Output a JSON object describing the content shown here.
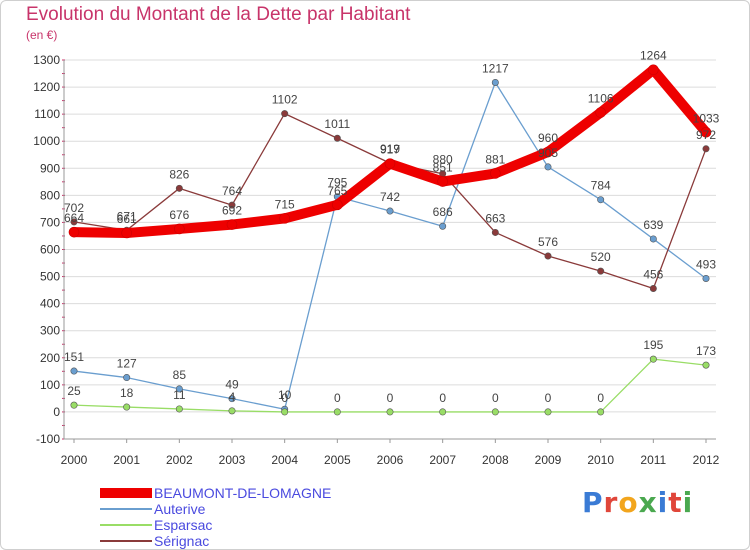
{
  "title": "Evolution du Montant de la Dette par Habitant",
  "subtitle": "(en €)",
  "brand": {
    "name": "Proxiti",
    "letters": [
      "P",
      "r",
      "o",
      "x",
      "i",
      "t",
      "i"
    ],
    "letter_colors": [
      "#3a7bd5",
      "#e0463a",
      "#f2a51d",
      "#4aa84f",
      "#3a7bd5",
      "#e0463a",
      "#4aa84f"
    ]
  },
  "chart_data": {
    "type": "line",
    "title": "Evolution du Montant de la Dette par Habitant",
    "subtitle": "(en €)",
    "xlabel": "",
    "ylabel": "",
    "x": [
      "2000",
      "2001",
      "2002",
      "2003",
      "2004",
      "2005",
      "2006",
      "2007",
      "2008",
      "2009",
      "2010",
      "2011",
      "2012"
    ],
    "ylim": [
      -100,
      1300
    ],
    "yticks": [
      -100,
      0,
      100,
      200,
      300,
      400,
      500,
      600,
      700,
      800,
      900,
      1000,
      1100,
      1200,
      1300
    ],
    "grid": "horizontal",
    "legend_position": "bottom-left",
    "series": [
      {
        "name": "BEAUMONT-DE-LOMAGNE",
        "color": "#ee0000",
        "values": [
          664,
          661,
          676,
          692,
          715,
          765,
          917,
          851,
          881,
          960,
          1106,
          1264,
          1033
        ]
      },
      {
        "name": "Auterive",
        "color": "#6a9ecf",
        "values": [
          151,
          127,
          85,
          49,
          10,
          795,
          742,
          686,
          1217,
          905,
          784,
          639,
          493
        ]
      },
      {
        "name": "Esparsac",
        "color": "#99dd66",
        "values": [
          25,
          18,
          11,
          4,
          0,
          0,
          0,
          0,
          0,
          0,
          0,
          195,
          173
        ]
      },
      {
        "name": "Sérignac",
        "color": "#8a3a3a",
        "values": [
          702,
          671,
          826,
          764,
          1102,
          1011,
          919,
          880,
          663,
          576,
          520,
          456,
          972
        ]
      }
    ]
  }
}
